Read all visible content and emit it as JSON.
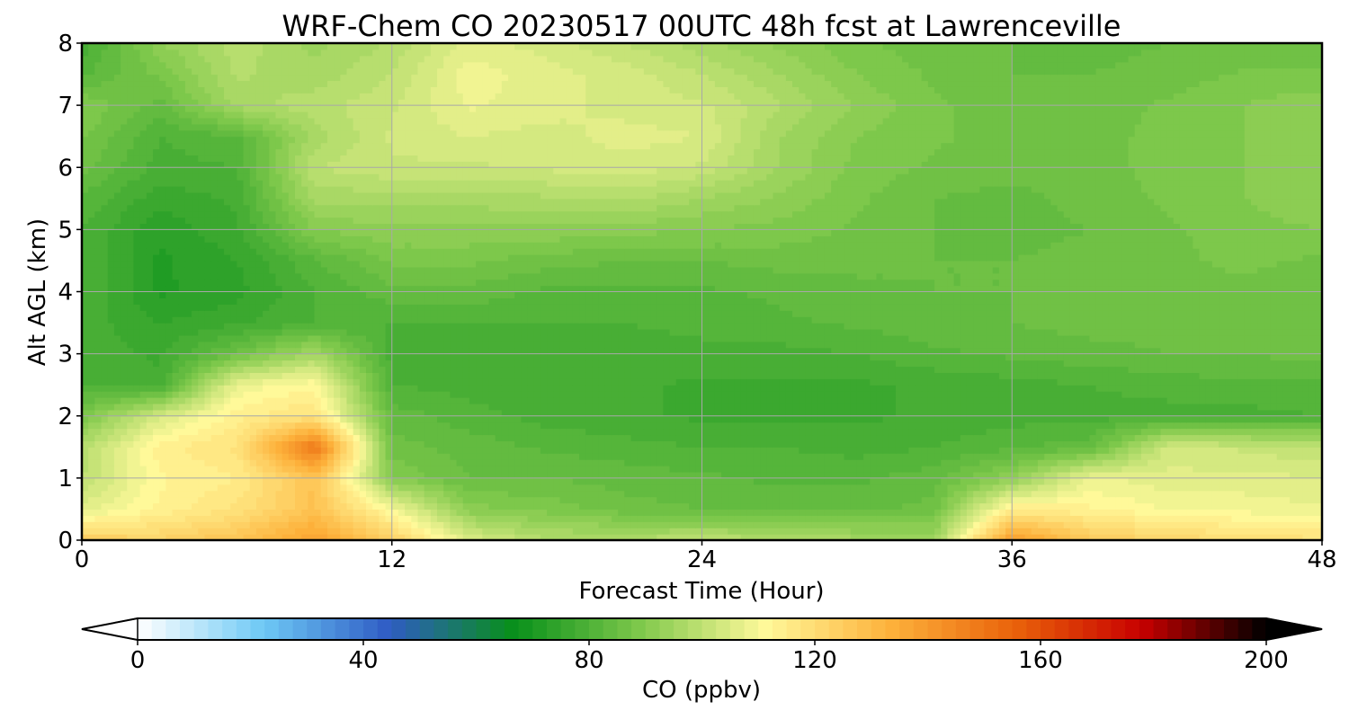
{
  "chart_data": {
    "type": "heatmap",
    "title": "WRF-Chem CO  20230517 00UTC 48h fcst at Lawrenceville",
    "xlabel": "Forecast Time (Hour)",
    "ylabel": "Alt AGL (km)",
    "xlim": [
      0,
      48
    ],
    "ylim": [
      0,
      8
    ],
    "xticks": [
      0,
      12,
      24,
      36,
      48
    ],
    "xtick_labels": [
      "0",
      "12",
      "24",
      "36",
      "48"
    ],
    "yticks": [
      0,
      1,
      2,
      3,
      4,
      5,
      6,
      7,
      8
    ],
    "ytick_labels": [
      "0",
      "1",
      "2",
      "3",
      "4",
      "5",
      "6",
      "7",
      "8"
    ],
    "grid": true,
    "x_hours": [
      0,
      3,
      6,
      9,
      12,
      15,
      18,
      21,
      24,
      27,
      30,
      33,
      36,
      39,
      42,
      45,
      48
    ],
    "y_km": [
      0,
      0.5,
      1,
      1.5,
      2,
      2.5,
      3,
      3.5,
      4,
      4.5,
      5,
      5.5,
      6,
      6.5,
      7,
      7.5,
      8
    ],
    "values_ppbv": [
      [
        125,
        123,
        128,
        138,
        124,
        105,
        98,
        98,
        100,
        98,
        96,
        95,
        140,
        126,
        122,
        120,
        118
      ],
      [
        106,
        113,
        118,
        128,
        110,
        91,
        89,
        86,
        85,
        84,
        84,
        86,
        115,
        113,
        110,
        109,
        108
      ],
      [
        100,
        112,
        115,
        128,
        90,
        85,
        85,
        84,
        83,
        82,
        82,
        84,
        92,
        108,
        106,
        106,
        105
      ],
      [
        98,
        114,
        118,
        150,
        86,
        84,
        82,
        81,
        80,
        80,
        79,
        80,
        82,
        84,
        103,
        102,
        100
      ],
      [
        88,
        104,
        114,
        118,
        84,
        81,
        79,
        78,
        77,
        77,
        77,
        78,
        79,
        79,
        79,
        79,
        80
      ],
      [
        80,
        78,
        108,
        112,
        80,
        79,
        78,
        78,
        77,
        77,
        77,
        78,
        79,
        80,
        81,
        82,
        82
      ],
      [
        79,
        77,
        86,
        96,
        79,
        78,
        78,
        78,
        79,
        79,
        80,
        82,
        83,
        84,
        85,
        85,
        86
      ],
      [
        79,
        75,
        77,
        80,
        80,
        80,
        80,
        80,
        81,
        82,
        83,
        84,
        85,
        86,
        86,
        87,
        86
      ],
      [
        80,
        72,
        74,
        80,
        84,
        84,
        82,
        82,
        82,
        83,
        84,
        85,
        85,
        86,
        87,
        87,
        86
      ],
      [
        80,
        72,
        75,
        82,
        88,
        88,
        86,
        85,
        85,
        86,
        86,
        85,
        85,
        86,
        87,
        88,
        87
      ],
      [
        80,
        73,
        77,
        90,
        92,
        92,
        92,
        91,
        90,
        89,
        87,
        85,
        84,
        85,
        87,
        89,
        90
      ],
      [
        82,
        76,
        78,
        96,
        96,
        96,
        97,
        98,
        95,
        92,
        88,
        85,
        84,
        86,
        88,
        90,
        92
      ],
      [
        86,
        79,
        80,
        100,
        102,
        102,
        103,
        104,
        102,
        95,
        89,
        87,
        86,
        87,
        88,
        90,
        92
      ],
      [
        88,
        80,
        82,
        96,
        103,
        105,
        104,
        106,
        105,
        95,
        90,
        88,
        86,
        87,
        88,
        90,
        92
      ],
      [
        90,
        84,
        96,
        99,
        102,
        108,
        106,
        104,
        103,
        98,
        92,
        88,
        86,
        86,
        88,
        90,
        92
      ],
      [
        82,
        88,
        98,
        96,
        100,
        109,
        106,
        104,
        100,
        95,
        90,
        87,
        85,
        85,
        86,
        88,
        88
      ],
      [
        78,
        92,
        99,
        94,
        98,
        106,
        104,
        100,
        96,
        92,
        88,
        86,
        85,
        84,
        85,
        85,
        85
      ]
    ],
    "colorbar": {
      "label": "CO  (ppbv)",
      "ticks": [
        0,
        40,
        80,
        120,
        160,
        200
      ],
      "tick_labels": [
        "0",
        "40",
        "80",
        "120",
        "160",
        "200"
      ],
      "range": [
        0,
        200
      ],
      "extend": "both",
      "colors": [
        "#ffffff",
        "#6ec9f5",
        "#2f5cc4",
        "#08901a",
        "#7ec84b",
        "#fff99a",
        "#fdb13b",
        "#e9620a",
        "#c80000",
        "#000000"
      ]
    }
  }
}
